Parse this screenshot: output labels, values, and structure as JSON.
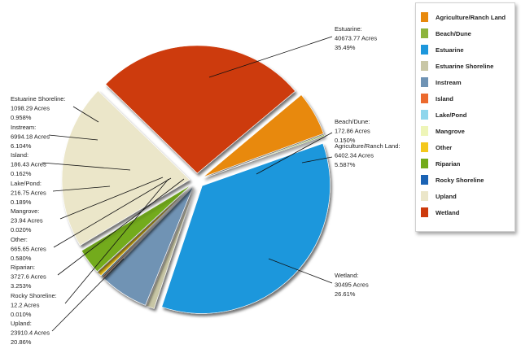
{
  "chart_data": {
    "type": "pie",
    "title": "",
    "unit": "Acres",
    "slices": [
      {
        "label": "Agriculture/Ranch Land",
        "name": "Agriculture/Ranch Land:",
        "value": 6402.34,
        "value_text": "6402.34 Acres",
        "percent_text": "5.587%",
        "color": "#e8890c"
      },
      {
        "label": "Beach/Dune",
        "name": "Beach/Dune:",
        "value": 172.86,
        "value_text": "172.86 Acres",
        "percent_text": "0.150%",
        "color": "#8db43c"
      },
      {
        "label": "Estuarine",
        "name": "Estuarine:",
        "value": 40673.77,
        "value_text": "40673.77 Acres",
        "percent_text": "35.49%",
        "color": "#1d97dc"
      },
      {
        "label": "Estuarine Shoreline",
        "name": "Estuarine Shoreline:",
        "value": 1098.29,
        "value_text": "1098.29 Acres",
        "percent_text": "0.958%",
        "color": "#c9c7a6"
      },
      {
        "label": "Instream",
        "name": "Instream:",
        "value": 6994.18,
        "value_text": "6994.18 Acres",
        "percent_text": "6.104%",
        "color": "#6f93b4"
      },
      {
        "label": "Island",
        "name": "Island:",
        "value": 186.43,
        "value_text": "186.43 Acres",
        "percent_text": "0.162%",
        "color": "#ec6a2e"
      },
      {
        "label": "Lake/Pond",
        "name": "Lake/Pond:",
        "value": 216.75,
        "value_text": "216.75 Acres",
        "percent_text": "0.189%",
        "color": "#8fd6ec"
      },
      {
        "label": "Mangrove",
        "name": "Mangrove:",
        "value": 23.94,
        "value_text": "23.94 Acres",
        "percent_text": "0.020%",
        "color": "#eef5b8"
      },
      {
        "label": "Other",
        "name": "Other:",
        "value": 665.65,
        "value_text": "665.65 Acres",
        "percent_text": "0.580%",
        "color": "#f4c81c"
      },
      {
        "label": "Riparian",
        "name": "Riparian:",
        "value": 3727.6,
        "value_text": "3727.6 Acres",
        "percent_text": "3.253%",
        "color": "#73ab1a"
      },
      {
        "label": "Rocky Shoreline",
        "name": "Rocky Shoreline:",
        "value": 12.2,
        "value_text": "12.2 Acres",
        "percent_text": "0.010%",
        "color": "#1b63b4"
      },
      {
        "label": "Upland",
        "name": "Upland:",
        "value": 23910.4,
        "value_text": "23910.4 Acres",
        "percent_text": "20.86%",
        "color": "#ebe6c9"
      },
      {
        "label": "Wetland",
        "name": "Wetland:",
        "value": 30495,
        "value_text": "30495 Acres",
        "percent_text": "26.61%",
        "color": "#cd3a0c"
      }
    ],
    "legend_position": "right"
  }
}
